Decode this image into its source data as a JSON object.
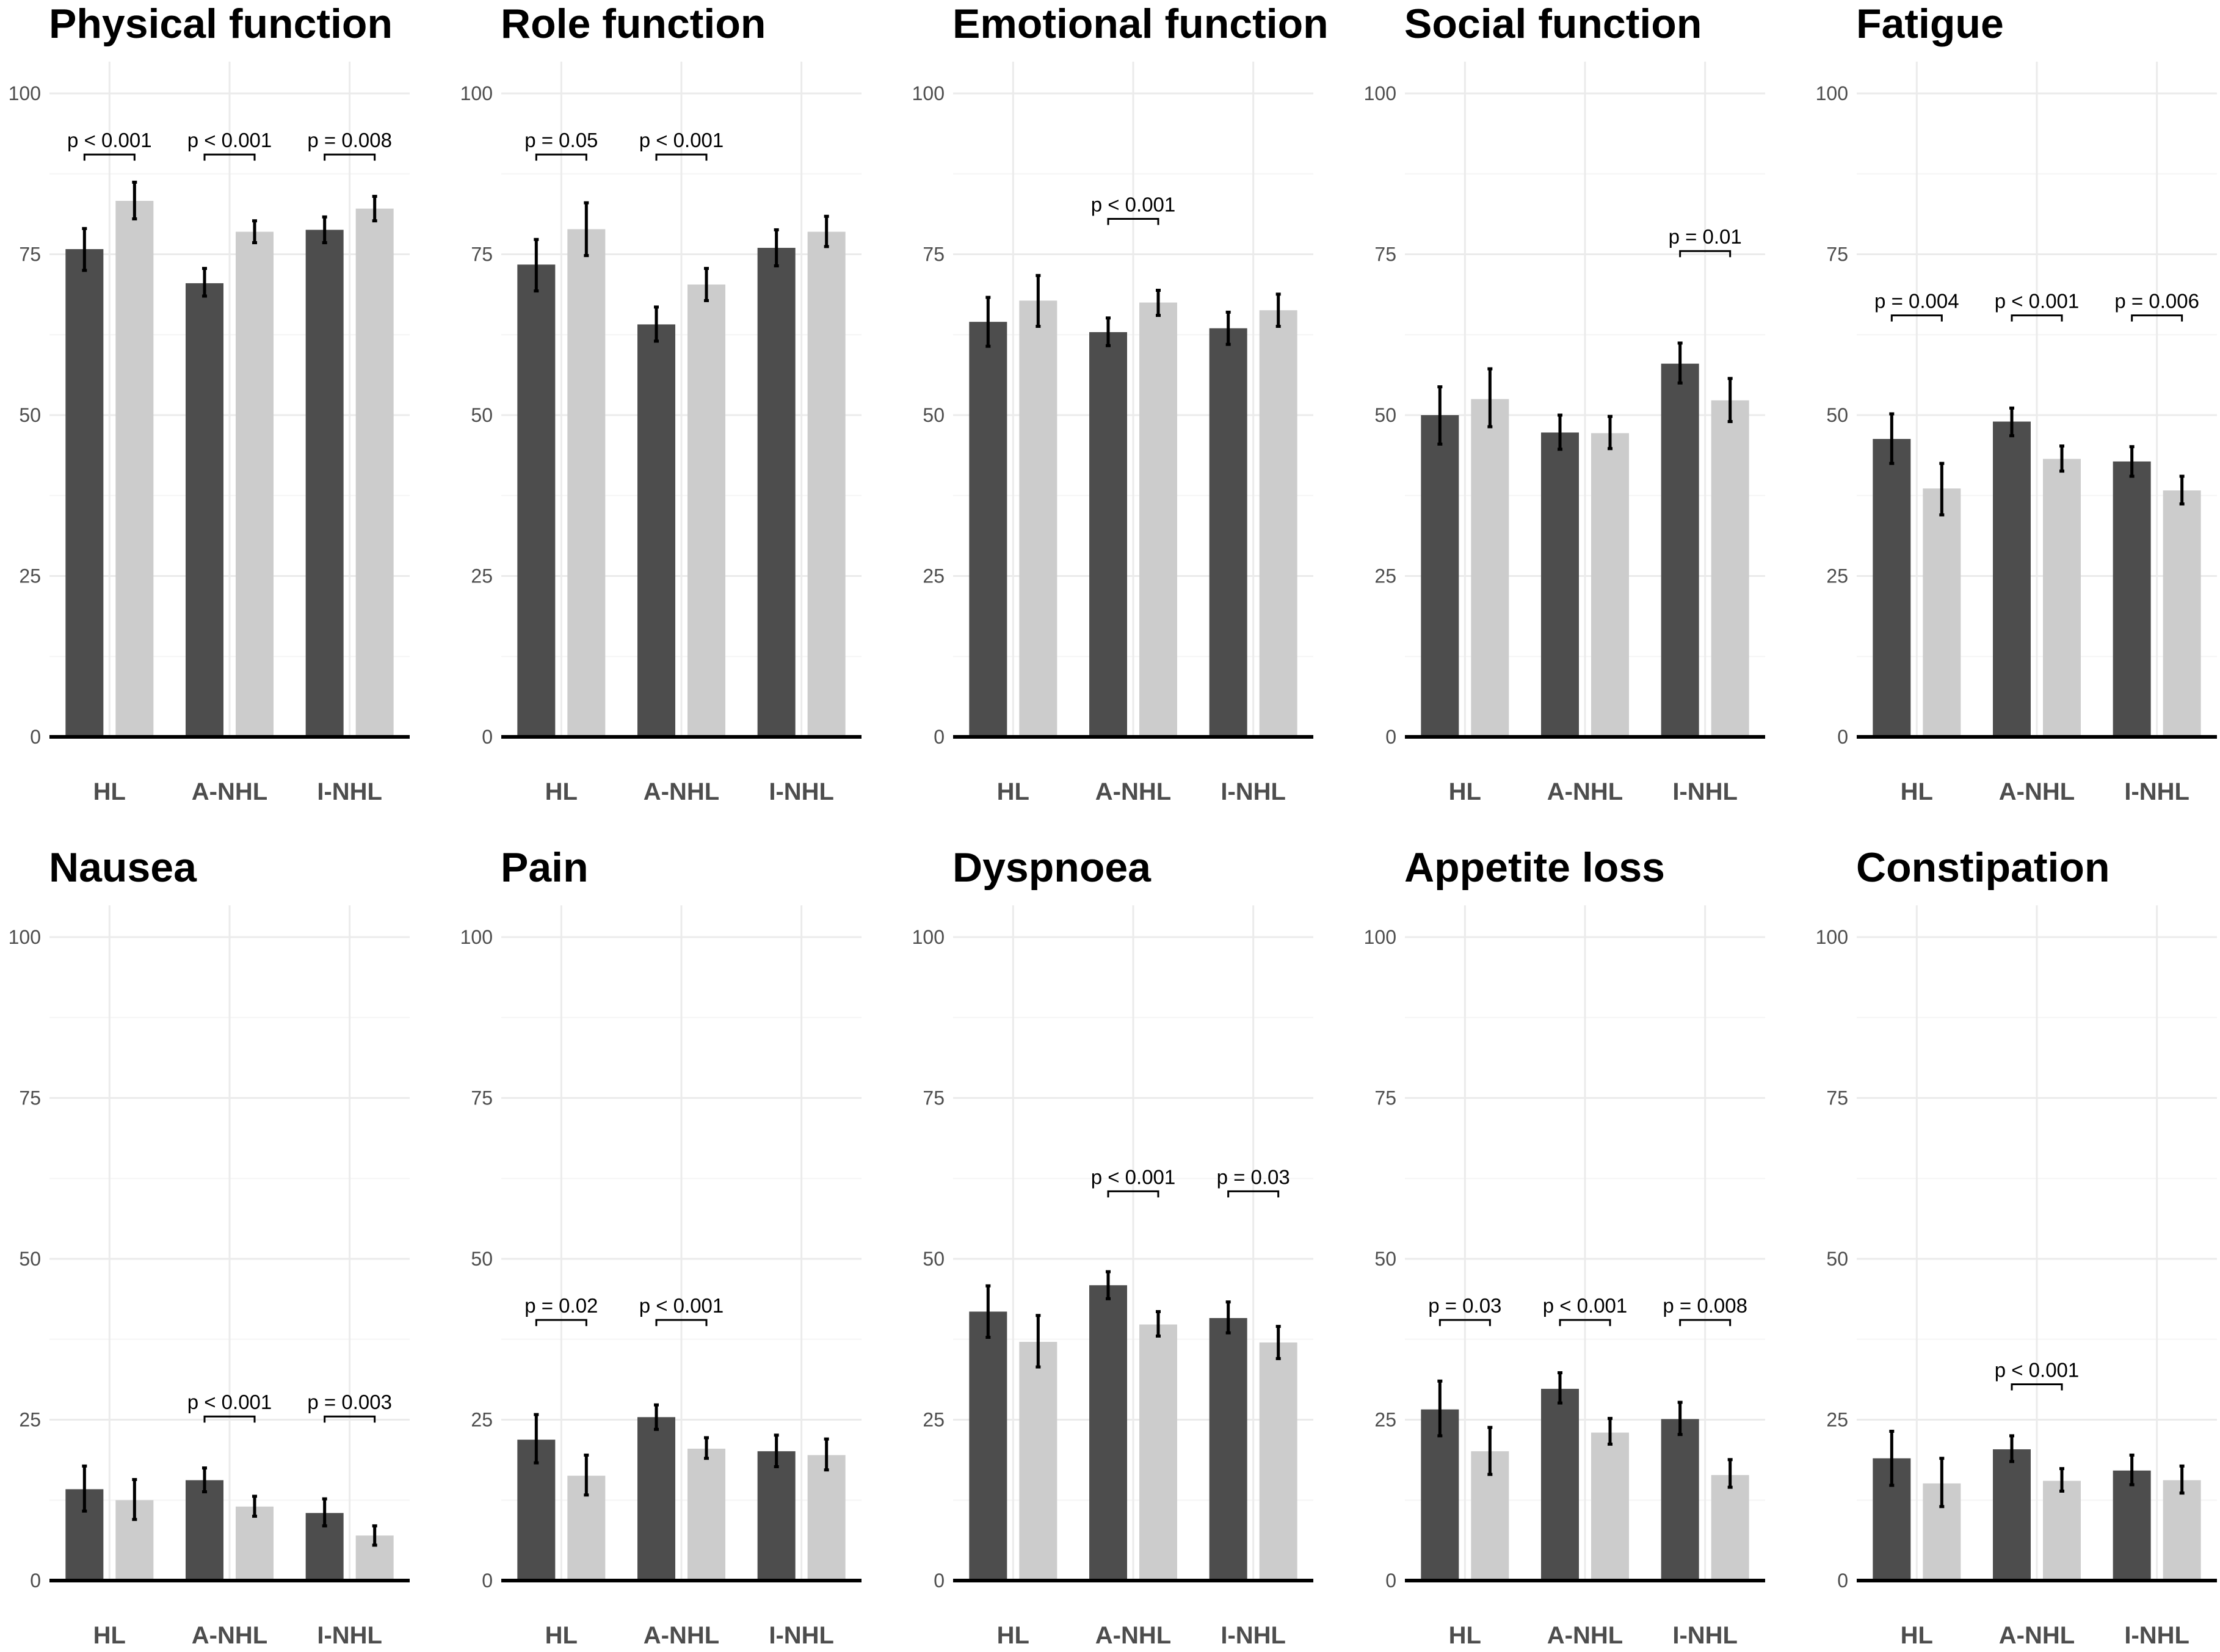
{
  "colors": {
    "dark": "#4d4d4d",
    "light": "#cccccc"
  },
  "chart_data": [
    {
      "type": "bar",
      "title": "Physical function",
      "categories": [
        "HL",
        "A-NHL",
        "I-NHL"
      ],
      "ylim": [
        0,
        100
      ],
      "yticks": [
        "0",
        "25",
        "50",
        "75",
        "100"
      ],
      "series": [
        {
          "name": "dark",
          "values": [
            75.8,
            70.5,
            78.8
          ],
          "lower": [
            72.5,
            68.5,
            76.8
          ],
          "upper": [
            79,
            72.8,
            80.8
          ]
        },
        {
          "name": "light",
          "values": [
            83.3,
            78.5,
            82.1
          ],
          "lower": [
            80.5,
            76.8,
            80.2
          ],
          "upper": [
            86.2,
            80.2,
            84
          ]
        }
      ],
      "annotations": [
        {
          "category": 0,
          "text": "p < 0.001",
          "level": 90.5
        },
        {
          "category": 1,
          "text": "p < 0.001",
          "level": 90.5
        },
        {
          "category": 2,
          "text": "p = 0.008",
          "level": 90.5
        }
      ]
    },
    {
      "type": "bar",
      "title": "Role function",
      "categories": [
        "HL",
        "A-NHL",
        "I-NHL"
      ],
      "ylim": [
        0,
        100
      ],
      "yticks": [
        "0",
        "25",
        "50",
        "75",
        "100"
      ],
      "series": [
        {
          "name": "dark",
          "values": [
            73.4,
            64.1,
            76.0
          ],
          "lower": [
            69.3,
            61.5,
            73.2
          ],
          "upper": [
            77.3,
            66.8,
            78.8
          ]
        },
        {
          "name": "light",
          "values": [
            78.9,
            70.3,
            78.5
          ],
          "lower": [
            74.8,
            67.8,
            76.2
          ],
          "upper": [
            83,
            72.8,
            80.9
          ]
        }
      ],
      "annotations": [
        {
          "category": 0,
          "text": "p = 0.05",
          "level": 90.5
        },
        {
          "category": 1,
          "text": "p < 0.001",
          "level": 90.5
        }
      ]
    },
    {
      "type": "bar",
      "title": "Emotional function",
      "categories": [
        "HL",
        "A-NHL",
        "I-NHL"
      ],
      "ylim": [
        0,
        100
      ],
      "yticks": [
        "0",
        "25",
        "50",
        "75",
        "100"
      ],
      "series": [
        {
          "name": "dark",
          "values": [
            64.5,
            62.9,
            63.5
          ],
          "lower": [
            60.7,
            60.8,
            61.0
          ],
          "upper": [
            68.3,
            65.1,
            66.0
          ]
        },
        {
          "name": "light",
          "values": [
            67.8,
            67.5,
            66.3
          ],
          "lower": [
            63.8,
            65.5,
            63.8
          ],
          "upper": [
            71.7,
            69.4,
            68.8
          ]
        }
      ],
      "annotations": [
        {
          "category": 1,
          "text": "p < 0.001",
          "level": 80.5
        }
      ]
    },
    {
      "type": "bar",
      "title": "Social function",
      "categories": [
        "HL",
        "A-NHL",
        "I-NHL"
      ],
      "ylim": [
        0,
        100
      ],
      "yticks": [
        "0",
        "25",
        "50",
        "75",
        "100"
      ],
      "series": [
        {
          "name": "dark",
          "values": [
            50.0,
            47.3,
            58.0
          ],
          "lower": [
            45.5,
            44.7,
            55.0
          ],
          "upper": [
            54.4,
            50.0,
            61.2
          ]
        },
        {
          "name": "light",
          "values": [
            52.5,
            47.2,
            52.3
          ],
          "lower": [
            48.2,
            44.8,
            49.0
          ],
          "upper": [
            57.2,
            49.8,
            55.7
          ]
        }
      ],
      "annotations": [
        {
          "category": 2,
          "text": "p = 0.01",
          "level": 75.5
        }
      ]
    },
    {
      "type": "bar",
      "title": "Fatigue",
      "categories": [
        "HL",
        "A-NHL",
        "I-NHL"
      ],
      "ylim": [
        0,
        100
      ],
      "yticks": [
        "0",
        "25",
        "50",
        "75",
        "100"
      ],
      "series": [
        {
          "name": "dark",
          "values": [
            46.3,
            49.0,
            42.8
          ],
          "lower": [
            42.5,
            46.8,
            40.5
          ],
          "upper": [
            50.2,
            51.1,
            45.1
          ]
        },
        {
          "name": "light",
          "values": [
            38.6,
            43.2,
            38.3
          ],
          "lower": [
            34.5,
            41.3,
            36.2
          ],
          "upper": [
            42.5,
            45.2,
            40.5
          ]
        }
      ],
      "annotations": [
        {
          "category": 0,
          "text": "p = 0.004",
          "level": 65.5
        },
        {
          "category": 1,
          "text": "p < 0.001",
          "level": 65.5
        },
        {
          "category": 2,
          "text": "p = 0.006",
          "level": 65.5
        }
      ]
    },
    {
      "type": "bar",
      "title": "Nausea",
      "categories": [
        "HL",
        "A-NHL",
        "I-NHL"
      ],
      "ylim": [
        0,
        100
      ],
      "yticks": [
        "0",
        "25",
        "50",
        "75",
        "100"
      ],
      "series": [
        {
          "name": "dark",
          "values": [
            14.2,
            15.6,
            10.5
          ],
          "lower": [
            10.8,
            13.8,
            8.5
          ],
          "upper": [
            17.8,
            17.5,
            12.7
          ]
        },
        {
          "name": "light",
          "values": [
            12.5,
            11.5,
            7.0
          ],
          "lower": [
            9.5,
            10.0,
            5.5
          ],
          "upper": [
            15.7,
            13.1,
            8.5
          ]
        }
      ],
      "annotations": [
        {
          "category": 1,
          "text": "p < 0.001",
          "level": 25.5
        },
        {
          "category": 2,
          "text": "p = 0.003",
          "level": 25.5
        }
      ]
    },
    {
      "type": "bar",
      "title": "Pain",
      "categories": [
        "HL",
        "A-NHL",
        "I-NHL"
      ],
      "ylim": [
        0,
        100
      ],
      "yticks": [
        "0",
        "25",
        "50",
        "75",
        "100"
      ],
      "series": [
        {
          "name": "dark",
          "values": [
            21.9,
            25.4,
            20.1
          ],
          "lower": [
            18.3,
            23.5,
            17.7
          ],
          "upper": [
            25.8,
            27.3,
            22.6
          ]
        },
        {
          "name": "light",
          "values": [
            16.3,
            20.5,
            19.5
          ],
          "lower": [
            13.3,
            19.0,
            17.2
          ],
          "upper": [
            19.5,
            22.2,
            22.0
          ]
        }
      ],
      "annotations": [
        {
          "category": 0,
          "text": "p = 0.02",
          "level": 40.5
        },
        {
          "category": 1,
          "text": "p < 0.001",
          "level": 40.5
        }
      ]
    },
    {
      "type": "bar",
      "title": "Dyspnoea",
      "categories": [
        "HL",
        "A-NHL",
        "I-NHL"
      ],
      "ylim": [
        0,
        100
      ],
      "yticks": [
        "0",
        "25",
        "50",
        "75",
        "100"
      ],
      "series": [
        {
          "name": "dark",
          "values": [
            41.8,
            45.9,
            40.8
          ],
          "lower": [
            37.8,
            43.8,
            38.5
          ],
          "upper": [
            45.8,
            48.0,
            43.3
          ]
        },
        {
          "name": "light",
          "values": [
            37.1,
            39.8,
            37.0
          ],
          "lower": [
            33.2,
            38.0,
            34.5
          ],
          "upper": [
            41.2,
            41.8,
            39.5
          ]
        }
      ],
      "annotations": [
        {
          "category": 1,
          "text": "p < 0.001",
          "level": 60.5
        },
        {
          "category": 2,
          "text": "p = 0.03",
          "level": 60.5
        }
      ]
    },
    {
      "type": "bar",
      "title": "Appetite loss",
      "categories": [
        "HL",
        "A-NHL",
        "I-NHL"
      ],
      "ylim": [
        0,
        100
      ],
      "yticks": [
        "0",
        "25",
        "50",
        "75",
        "100"
      ],
      "series": [
        {
          "name": "dark",
          "values": [
            26.6,
            29.8,
            25.1
          ],
          "lower": [
            22.5,
            27.6,
            22.7
          ],
          "upper": [
            31.0,
            32.3,
            27.7
          ]
        },
        {
          "name": "light",
          "values": [
            20.1,
            23.0,
            16.4
          ],
          "lower": [
            16.5,
            21.2,
            14.5
          ],
          "upper": [
            23.8,
            25.2,
            18.8
          ]
        }
      ],
      "annotations": [
        {
          "category": 0,
          "text": "p = 0.03",
          "level": 40.5
        },
        {
          "category": 1,
          "text": "p < 0.001",
          "level": 40.5
        },
        {
          "category": 2,
          "text": "p = 0.008",
          "level": 40.5
        }
      ]
    },
    {
      "type": "bar",
      "title": "Constipation",
      "categories": [
        "HL",
        "A-NHL",
        "I-NHL"
      ],
      "ylim": [
        0,
        100
      ],
      "yticks": [
        "0",
        "25",
        "50",
        "75",
        "100"
      ],
      "series": [
        {
          "name": "dark",
          "values": [
            19.0,
            20.4,
            17.1
          ],
          "lower": [
            14.8,
            18.5,
            14.9
          ],
          "upper": [
            23.2,
            22.5,
            19.5
          ]
        },
        {
          "name": "light",
          "values": [
            15.1,
            15.5,
            15.6
          ],
          "lower": [
            11.5,
            13.9,
            13.6
          ],
          "upper": [
            19.0,
            17.4,
            17.8
          ]
        }
      ],
      "annotations": [
        {
          "category": 1,
          "text": "p < 0.001",
          "level": 30.5
        }
      ]
    }
  ]
}
